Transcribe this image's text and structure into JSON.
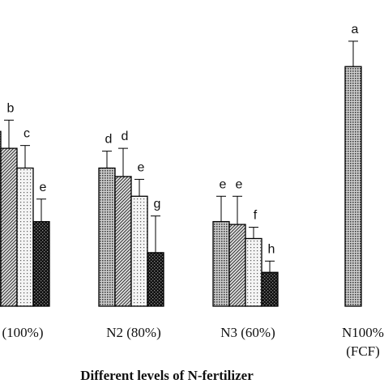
{
  "chart_data": {
    "type": "bar",
    "xlabel": "Different levels of N-fertilizer",
    "ylabel": "",
    "ylim": [
      0,
      100
    ],
    "grid": false,
    "legend": "none",
    "categories": [
      "(100%)",
      "N2 (80%)",
      "N3 (60%)",
      "N100%\n(FCF)"
    ],
    "series": [
      {
        "pattern": "dense-dots",
        "color": "#8c8c8c",
        "values": [
          62,
          49,
          30,
          85
        ],
        "errors": [
          8,
          6,
          9,
          9
        ],
        "labels": [
          "",
          "d",
          "e",
          "a"
        ]
      },
      {
        "pattern": "diagonal-hatch",
        "color": "#9a9a9a",
        "values": [
          56,
          46,
          29,
          null
        ],
        "errors": [
          10,
          10,
          10,
          null
        ],
        "labels": [
          "b",
          "d",
          "e",
          ""
        ]
      },
      {
        "pattern": "sparse-dots",
        "color": "#d6d6d6",
        "values": [
          49,
          39,
          24,
          null
        ],
        "errors": [
          8,
          6,
          4,
          null
        ],
        "labels": [
          "c",
          "e",
          "f",
          ""
        ]
      },
      {
        "pattern": "dark-checker",
        "color": "#1a1a1a",
        "values": [
          30,
          19,
          12,
          null
        ],
        "errors": [
          8,
          13,
          4,
          null
        ],
        "labels": [
          "e",
          "g",
          "h",
          ""
        ]
      }
    ]
  }
}
